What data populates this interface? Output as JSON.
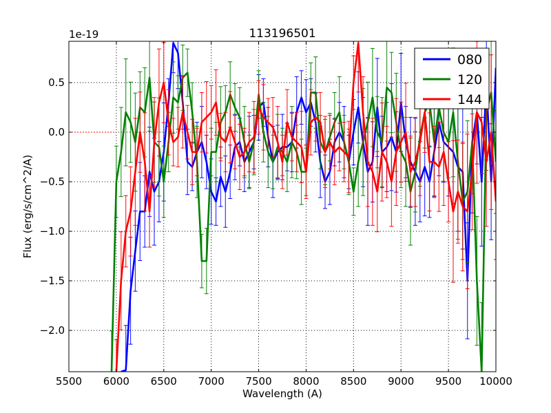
{
  "chart_data": {
    "type": "line",
    "title": "113196501",
    "xlabel": "Wavelength (A)",
    "ylabel": "Flux (erg/s/cm^2/A)",
    "y_offset_label": "1e-19",
    "xlim": [
      5500,
      10000
    ],
    "ylim": [
      -2.417,
      0.917
    ],
    "xticks": [
      5500,
      6000,
      6500,
      7000,
      7500,
      8000,
      8500,
      9000,
      9500,
      10000
    ],
    "yticks": [
      0.5,
      0.0,
      -0.5,
      -1.0,
      -1.5,
      -2.0
    ],
    "ytick_labels": [
      "0.5",
      "0.0",
      "−0.5",
      "−1.0",
      "−1.5",
      "−2.0"
    ],
    "grid": true,
    "legend_position": "top-right",
    "x_step": 50,
    "error_bands": [
      {
        "from": 5900,
        "to": 6500,
        "err": 0.45
      },
      {
        "from": 6500,
        "to": 8500,
        "err": 0.3
      },
      {
        "from": 8500,
        "to": 9500,
        "err": 0.45
      },
      {
        "from": 9500,
        "to": 10000,
        "err": 0.65
      }
    ],
    "series": [
      {
        "name": "080",
        "color": "#0000ff",
        "x_start": 6050,
        "values": [
          -3.0,
          -2.4,
          -1.6,
          -1.2,
          -0.8,
          -0.8,
          -0.4,
          -0.6,
          -0.5,
          -0.2,
          0.3,
          0.9,
          0.8,
          0.3,
          -0.3,
          -0.35,
          -0.2,
          -0.1,
          -0.3,
          -0.6,
          -0.7,
          -0.45,
          -0.6,
          -0.4,
          -0.15,
          -0.1,
          -0.3,
          -0.2,
          -0.1,
          0.25,
          0.3,
          -0.05,
          -0.3,
          -0.2,
          -0.15,
          -0.15,
          -0.1,
          0.2,
          0.35,
          0.2,
          0.3,
          0.1,
          -0.3,
          -0.5,
          -0.4,
          -0.1,
          0.0,
          -0.1,
          -0.3,
          0.0,
          0.25,
          -0.1,
          -0.4,
          -0.3,
          0.25,
          -0.2,
          -0.15,
          -0.05,
          -0.2,
          0.3,
          -0.1,
          -0.3,
          -0.4,
          -0.5,
          -0.35,
          -0.5,
          -0.2,
          0.1,
          -0.1,
          -0.15,
          -0.2,
          -0.35,
          -0.4,
          -1.5,
          -0.1,
          0.2,
          -0.5,
          0.5,
          -0.5,
          0.65
        ]
      },
      {
        "name": "120",
        "color": "#008000",
        "x_start": 5950,
        "values": [
          -2.5,
          -0.5,
          -0.2,
          0.2,
          0.1,
          -0.1,
          0.25,
          0.2,
          0.55,
          -0.1,
          -0.15,
          -0.5,
          -0.1,
          0.35,
          0.3,
          0.55,
          0.6,
          0.2,
          -0.3,
          -1.3,
          -1.3,
          -0.2,
          -0.2,
          0.1,
          0.2,
          0.38,
          0.25,
          0.15,
          -0.1,
          -0.3,
          -0.1,
          0.38,
          0.0,
          -0.2,
          -0.3,
          -0.15,
          -0.2,
          -0.3,
          -0.1,
          -0.2,
          -0.4,
          -0.4,
          0.4,
          0.4,
          -0.1,
          -0.2,
          -0.05,
          0.1,
          0.2,
          -0.1,
          -0.3,
          -0.6,
          -0.3,
          -0.1,
          0.1,
          0.35,
          0.0,
          -0.1,
          0.45,
          0.4,
          0.1,
          -0.2,
          -0.3,
          -0.6,
          -0.4,
          -0.05,
          0.2,
          0.3,
          -0.1,
          0.25,
          0.0,
          -0.1,
          0.2,
          -0.3,
          -0.7,
          -0.6,
          -0.1,
          -1.5,
          -2.5,
          0.2,
          0.4,
          -0.3
        ]
      },
      {
        "name": "144",
        "color": "#ff0000",
        "x_start": 6000,
        "values": [
          -2.5,
          -1.5,
          -1.0,
          -0.8,
          -0.4,
          0.0,
          -0.3,
          -0.8,
          -0.1,
          0.3,
          0.5,
          0.1,
          -0.1,
          -0.05,
          0.2,
          0.0,
          -0.2,
          -0.2,
          0.1,
          0.15,
          0.2,
          0.3,
          -0.05,
          -0.1,
          0.05,
          -0.1,
          -0.25,
          -0.2,
          -0.1,
          -0.05,
          0.25,
          0.15,
          0.1,
          0.05,
          -0.1,
          -0.3,
          0.1,
          -0.05,
          -0.1,
          -0.15,
          -0.4,
          0.1,
          0.15,
          0.1,
          -0.2,
          -0.1,
          -0.2,
          -0.15,
          -0.2,
          -0.25,
          0.5,
          0.9,
          0.2,
          -0.3,
          -0.4,
          -0.6,
          -0.2,
          -0.3,
          -0.5,
          -0.2,
          -0.1,
          0.0,
          -0.4,
          -0.3,
          -0.1,
          0.2,
          -0.3,
          -0.3,
          -0.35,
          -0.2,
          -0.5,
          -0.8,
          -0.6,
          -0.75,
          -0.8,
          -0.4,
          0.2,
          0.1,
          -0.3,
          0.0,
          -0.7
        ]
      }
    ],
    "zero_line": {
      "from": 5500,
      "to": 6000,
      "value": 0.0,
      "color": "#ff0000"
    }
  }
}
